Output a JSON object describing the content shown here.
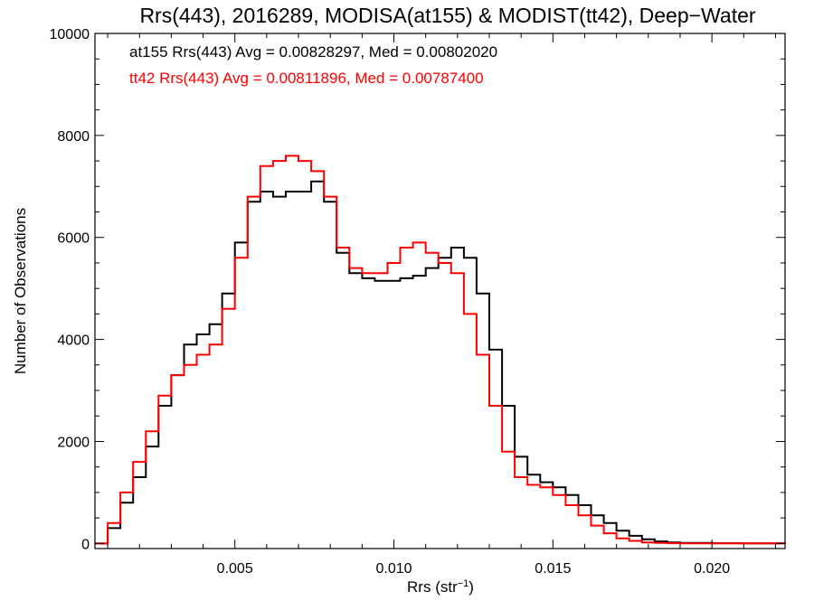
{
  "chart_data": {
    "type": "line",
    "step": true,
    "title": "Rrs(443), 2016289, MODISA(at155) & MODIST(tt42), Deep−Water",
    "xlabel": "Rrs (str",
    "xlabel_exp": "−1",
    "xlabel_close": ")",
    "ylabel": "Number of Observations",
    "xlim": [
      0.0006,
      0.0223
    ],
    "ylim": [
      -100,
      10000
    ],
    "xticks": [
      0.005,
      0.01,
      0.015,
      0.02
    ],
    "xtick_labels": [
      "0.005",
      "0.010",
      "0.015",
      "0.020"
    ],
    "yticks": [
      0,
      2000,
      4000,
      6000,
      8000,
      10000
    ],
    "ytick_labels": [
      "0",
      "2000",
      "4000",
      "6000",
      "8000",
      "10000"
    ],
    "xminor_step": 0.001,
    "yminor_step": 500,
    "grid": false,
    "annotations": [
      {
        "text": "at155 Rrs(443) Avg = 0.00828297, Med = 0.00802020",
        "color": "#000000"
      },
      {
        "text": "tt42 Rrs(443) Avg = 0.00811896, Med = 0.00787400",
        "color": "#ff0000"
      }
    ],
    "series": [
      {
        "color": "#000000",
        "x": [
          0.0006,
          0.001,
          0.0014,
          0.0018,
          0.0022,
          0.0026,
          0.003,
          0.0034,
          0.0038,
          0.0042,
          0.0046,
          0.005,
          0.0054,
          0.0058,
          0.0062,
          0.0066,
          0.007,
          0.0074,
          0.0078,
          0.0082,
          0.0086,
          0.009,
          0.0094,
          0.0098,
          0.0102,
          0.0106,
          0.011,
          0.0114,
          0.0118,
          0.0122,
          0.0126,
          0.013,
          0.0134,
          0.0138,
          0.0142,
          0.0146,
          0.015,
          0.0154,
          0.0158,
          0.0162,
          0.0166,
          0.017,
          0.0174,
          0.0178,
          0.0182,
          0.0186,
          0.019,
          0.02,
          0.021,
          0.0223
        ],
        "y": [
          0,
          300,
          800,
          1300,
          1900,
          2700,
          3300,
          3900,
          4100,
          4300,
          4900,
          5900,
          6700,
          6900,
          6800,
          6900,
          6900,
          7100,
          6700,
          5700,
          5300,
          5200,
          5150,
          5150,
          5200,
          5250,
          5400,
          5600,
          5800,
          5600,
          4900,
          3800,
          2700,
          1700,
          1350,
          1200,
          1100,
          950,
          750,
          550,
          400,
          250,
          150,
          80,
          40,
          20,
          10,
          5,
          2,
          0
        ]
      },
      {
        "color": "#ff0000",
        "x": [
          0.0006,
          0.001,
          0.0014,
          0.0018,
          0.0022,
          0.0026,
          0.003,
          0.0034,
          0.0038,
          0.0042,
          0.0046,
          0.005,
          0.0054,
          0.0058,
          0.0062,
          0.0066,
          0.007,
          0.0074,
          0.0078,
          0.0082,
          0.0086,
          0.009,
          0.0094,
          0.0098,
          0.0102,
          0.0106,
          0.011,
          0.0114,
          0.0118,
          0.0122,
          0.0126,
          0.013,
          0.0134,
          0.0138,
          0.0142,
          0.0146,
          0.015,
          0.0154,
          0.0158,
          0.0162,
          0.0166,
          0.017,
          0.0174,
          0.0178,
          0.0182,
          0.0186,
          0.019,
          0.02,
          0.021,
          0.0223
        ],
        "y": [
          0,
          400,
          1000,
          1600,
          2200,
          2900,
          3300,
          3500,
          3700,
          3900,
          4600,
          5600,
          6800,
          7400,
          7500,
          7600,
          7500,
          7300,
          6800,
          5800,
          5400,
          5300,
          5300,
          5500,
          5800,
          5900,
          5700,
          5500,
          5300,
          4500,
          3700,
          2700,
          1800,
          1300,
          1150,
          1100,
          950,
          750,
          550,
          350,
          200,
          100,
          50,
          20,
          10,
          5,
          3,
          2,
          1,
          0
        ]
      }
    ]
  }
}
